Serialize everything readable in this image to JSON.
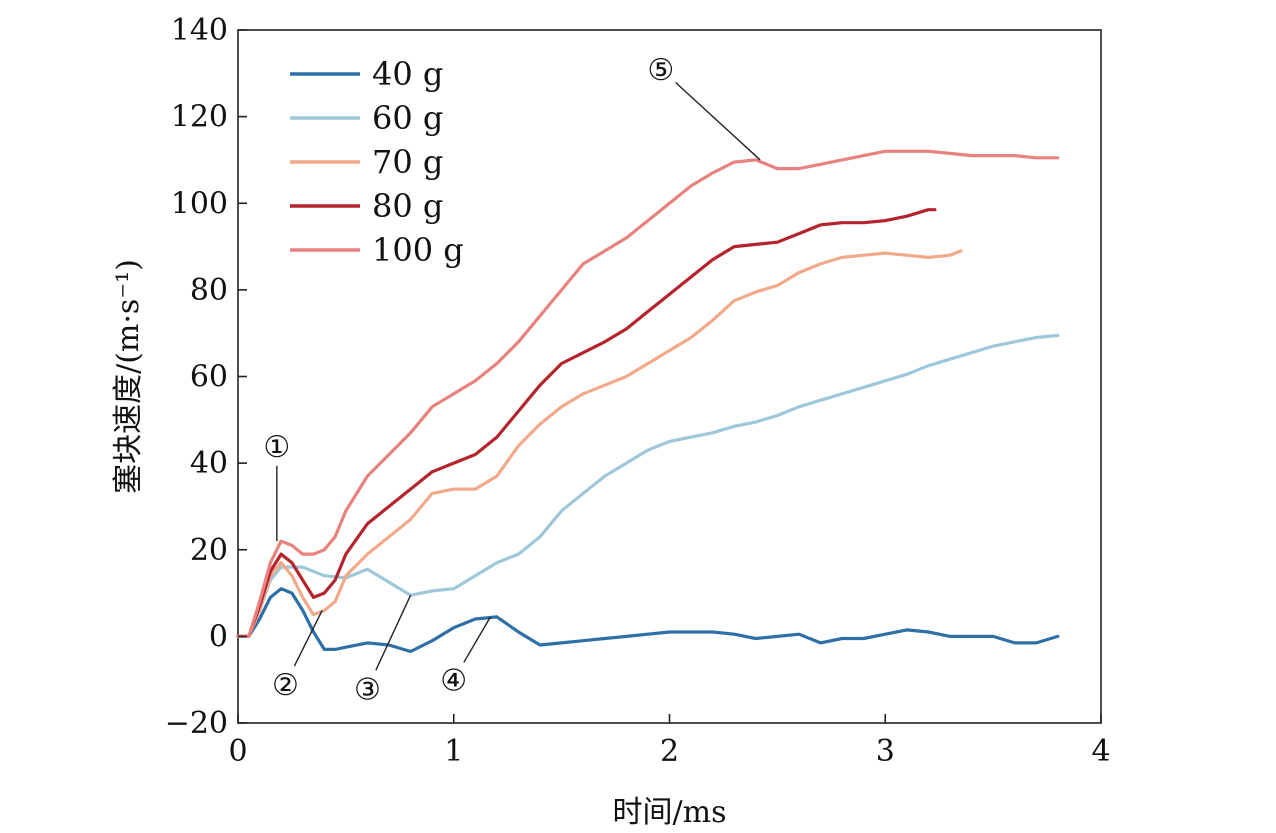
{
  "chart_data": {
    "type": "line",
    "xlabel": "时间/ms",
    "ylabel": "塞块速度/(m·s⁻¹)",
    "xlim": [
      0,
      4
    ],
    "ylim": [
      -20,
      140
    ],
    "xticks": [
      0,
      1,
      2,
      3,
      4
    ],
    "xtick_labels": [
      "0",
      "1",
      "2",
      "3",
      "4"
    ],
    "yticks": [
      -20,
      0,
      20,
      40,
      60,
      80,
      100,
      120,
      140
    ],
    "ytick_labels": [
      "−20",
      "0",
      "20",
      "40",
      "60",
      "80",
      "100",
      "120",
      "140"
    ],
    "grid": false,
    "legend_position": "top-left",
    "series": [
      {
        "name": "40 g",
        "color": "#2e6fa8",
        "points": [
          [
            0,
            0
          ],
          [
            0.05,
            0
          ],
          [
            0.1,
            4
          ],
          [
            0.15,
            9
          ],
          [
            0.2,
            11
          ],
          [
            0.25,
            10
          ],
          [
            0.3,
            6
          ],
          [
            0.35,
            1
          ],
          [
            0.4,
            -3
          ],
          [
            0.45,
            -3
          ],
          [
            0.5,
            -2.5
          ],
          [
            0.6,
            -1.5
          ],
          [
            0.7,
            -2
          ],
          [
            0.8,
            -3.5
          ],
          [
            0.9,
            -1
          ],
          [
            1.0,
            2
          ],
          [
            1.1,
            4
          ],
          [
            1.2,
            4.5
          ],
          [
            1.3,
            1
          ],
          [
            1.4,
            -2
          ],
          [
            1.5,
            -1.5
          ],
          [
            1.6,
            -1
          ],
          [
            1.7,
            -0.5
          ],
          [
            1.8,
            0
          ],
          [
            1.9,
            0.5
          ],
          [
            2.0,
            1
          ],
          [
            2.1,
            1
          ],
          [
            2.2,
            1
          ],
          [
            2.3,
            0.5
          ],
          [
            2.4,
            -0.5
          ],
          [
            2.5,
            0
          ],
          [
            2.6,
            0.5
          ],
          [
            2.7,
            -1.5
          ],
          [
            2.8,
            -0.5
          ],
          [
            2.9,
            -0.5
          ],
          [
            3.0,
            0.5
          ],
          [
            3.1,
            1.5
          ],
          [
            3.2,
            1
          ],
          [
            3.3,
            0
          ],
          [
            3.4,
            0
          ],
          [
            3.5,
            0
          ],
          [
            3.6,
            -1.5
          ],
          [
            3.7,
            -1.5
          ],
          [
            3.8,
            0
          ]
        ]
      },
      {
        "name": "60 g",
        "color": "#9ec8da",
        "points": [
          [
            0,
            0
          ],
          [
            0.05,
            0
          ],
          [
            0.1,
            6
          ],
          [
            0.15,
            13
          ],
          [
            0.2,
            16
          ],
          [
            0.3,
            16
          ],
          [
            0.4,
            14
          ],
          [
            0.5,
            13.5
          ],
          [
            0.6,
            15.5
          ],
          [
            0.7,
            12.5
          ],
          [
            0.8,
            9.5
          ],
          [
            0.9,
            10.5
          ],
          [
            1.0,
            11
          ],
          [
            1.1,
            14
          ],
          [
            1.2,
            17
          ],
          [
            1.3,
            19
          ],
          [
            1.4,
            23
          ],
          [
            1.5,
            29
          ],
          [
            1.6,
            33
          ],
          [
            1.7,
            37
          ],
          [
            1.8,
            40
          ],
          [
            1.9,
            43
          ],
          [
            2.0,
            45
          ],
          [
            2.1,
            46
          ],
          [
            2.2,
            47
          ],
          [
            2.3,
            48.5
          ],
          [
            2.4,
            49.5
          ],
          [
            2.5,
            51
          ],
          [
            2.6,
            53
          ],
          [
            2.7,
            54.5
          ],
          [
            2.8,
            56
          ],
          [
            2.9,
            57.5
          ],
          [
            3.0,
            59
          ],
          [
            3.1,
            60.5
          ],
          [
            3.2,
            62.5
          ],
          [
            3.3,
            64
          ],
          [
            3.4,
            65.5
          ],
          [
            3.5,
            67
          ],
          [
            3.6,
            68
          ],
          [
            3.7,
            69
          ],
          [
            3.8,
            69.5
          ]
        ]
      },
      {
        "name": "70 g",
        "color": "#f2a98a",
        "points": [
          [
            0,
            0
          ],
          [
            0.05,
            0
          ],
          [
            0.1,
            6
          ],
          [
            0.15,
            14
          ],
          [
            0.2,
            17
          ],
          [
            0.25,
            14
          ],
          [
            0.3,
            9
          ],
          [
            0.35,
            5
          ],
          [
            0.4,
            6
          ],
          [
            0.45,
            8
          ],
          [
            0.5,
            14
          ],
          [
            0.6,
            19
          ],
          [
            0.7,
            23
          ],
          [
            0.8,
            27
          ],
          [
            0.9,
            33
          ],
          [
            1.0,
            34
          ],
          [
            1.1,
            34
          ],
          [
            1.2,
            37
          ],
          [
            1.3,
            44
          ],
          [
            1.4,
            49
          ],
          [
            1.5,
            53
          ],
          [
            1.6,
            56
          ],
          [
            1.7,
            58
          ],
          [
            1.8,
            60
          ],
          [
            1.9,
            63
          ],
          [
            2.0,
            66
          ],
          [
            2.1,
            69
          ],
          [
            2.2,
            73
          ],
          [
            2.3,
            77.5
          ],
          [
            2.4,
            79.5
          ],
          [
            2.5,
            81
          ],
          [
            2.6,
            84
          ],
          [
            2.7,
            86
          ],
          [
            2.8,
            87.5
          ],
          [
            2.9,
            88
          ],
          [
            3.0,
            88.5
          ],
          [
            3.1,
            88
          ],
          [
            3.2,
            87.5
          ],
          [
            3.3,
            88
          ],
          [
            3.35,
            89
          ]
        ]
      },
      {
        "name": "80 g",
        "color": "#b5242c",
        "points": [
          [
            0,
            0
          ],
          [
            0.05,
            0
          ],
          [
            0.1,
            7
          ],
          [
            0.15,
            15
          ],
          [
            0.2,
            19
          ],
          [
            0.25,
            17
          ],
          [
            0.3,
            13
          ],
          [
            0.35,
            9
          ],
          [
            0.4,
            10
          ],
          [
            0.45,
            13
          ],
          [
            0.5,
            19
          ],
          [
            0.6,
            26
          ],
          [
            0.7,
            30
          ],
          [
            0.8,
            34
          ],
          [
            0.9,
            38
          ],
          [
            1.0,
            40
          ],
          [
            1.1,
            42
          ],
          [
            1.2,
            46
          ],
          [
            1.3,
            52
          ],
          [
            1.4,
            58
          ],
          [
            1.5,
            63
          ],
          [
            1.6,
            65.5
          ],
          [
            1.7,
            68
          ],
          [
            1.8,
            71
          ],
          [
            1.9,
            75
          ],
          [
            2.0,
            79
          ],
          [
            2.1,
            83
          ],
          [
            2.2,
            87
          ],
          [
            2.3,
            90
          ],
          [
            2.4,
            90.5
          ],
          [
            2.5,
            91
          ],
          [
            2.6,
            93
          ],
          [
            2.7,
            95
          ],
          [
            2.8,
            95.5
          ],
          [
            2.9,
            95.5
          ],
          [
            3.0,
            96
          ],
          [
            3.1,
            97
          ],
          [
            3.2,
            98.5
          ],
          [
            3.23,
            98.5
          ]
        ]
      },
      {
        "name": "100 g",
        "color": "#e8827e",
        "points": [
          [
            0,
            0
          ],
          [
            0.05,
            0
          ],
          [
            0.1,
            8
          ],
          [
            0.15,
            17
          ],
          [
            0.2,
            22
          ],
          [
            0.25,
            21
          ],
          [
            0.3,
            19
          ],
          [
            0.35,
            19
          ],
          [
            0.4,
            20
          ],
          [
            0.45,
            23
          ],
          [
            0.5,
            29
          ],
          [
            0.6,
            37
          ],
          [
            0.7,
            42
          ],
          [
            0.8,
            47
          ],
          [
            0.9,
            53
          ],
          [
            1.0,
            56
          ],
          [
            1.1,
            59
          ],
          [
            1.2,
            63
          ],
          [
            1.3,
            68
          ],
          [
            1.4,
            74
          ],
          [
            1.5,
            80
          ],
          [
            1.6,
            86
          ],
          [
            1.7,
            89
          ],
          [
            1.8,
            92
          ],
          [
            1.9,
            96
          ],
          [
            2.0,
            100
          ],
          [
            2.1,
            104
          ],
          [
            2.2,
            107
          ],
          [
            2.3,
            109.5
          ],
          [
            2.4,
            110
          ],
          [
            2.5,
            108
          ],
          [
            2.6,
            108
          ],
          [
            2.7,
            109
          ],
          [
            2.8,
            110
          ],
          [
            2.9,
            111
          ],
          [
            3.0,
            112
          ],
          [
            3.1,
            112
          ],
          [
            3.2,
            112
          ],
          [
            3.3,
            111.5
          ],
          [
            3.4,
            111
          ],
          [
            3.5,
            111
          ],
          [
            3.6,
            111
          ],
          [
            3.7,
            110.5
          ],
          [
            3.8,
            110.5
          ]
        ]
      }
    ],
    "annotations": [
      {
        "label": "①",
        "at": [
          0.18,
          22
        ],
        "text_at": [
          0.18,
          44
        ]
      },
      {
        "label": "②",
        "at": [
          0.39,
          6
        ],
        "text_at": [
          0.22,
          -11
        ]
      },
      {
        "label": "③",
        "at": [
          0.8,
          9.5
        ],
        "text_at": [
          0.6,
          -12
        ]
      },
      {
        "label": "④",
        "at": [
          1.17,
          4.5
        ],
        "text_at": [
          1.0,
          -10
        ]
      },
      {
        "label": "⑤",
        "at": [
          2.42,
          110
        ],
        "text_at": [
          1.96,
          131
        ]
      }
    ]
  }
}
